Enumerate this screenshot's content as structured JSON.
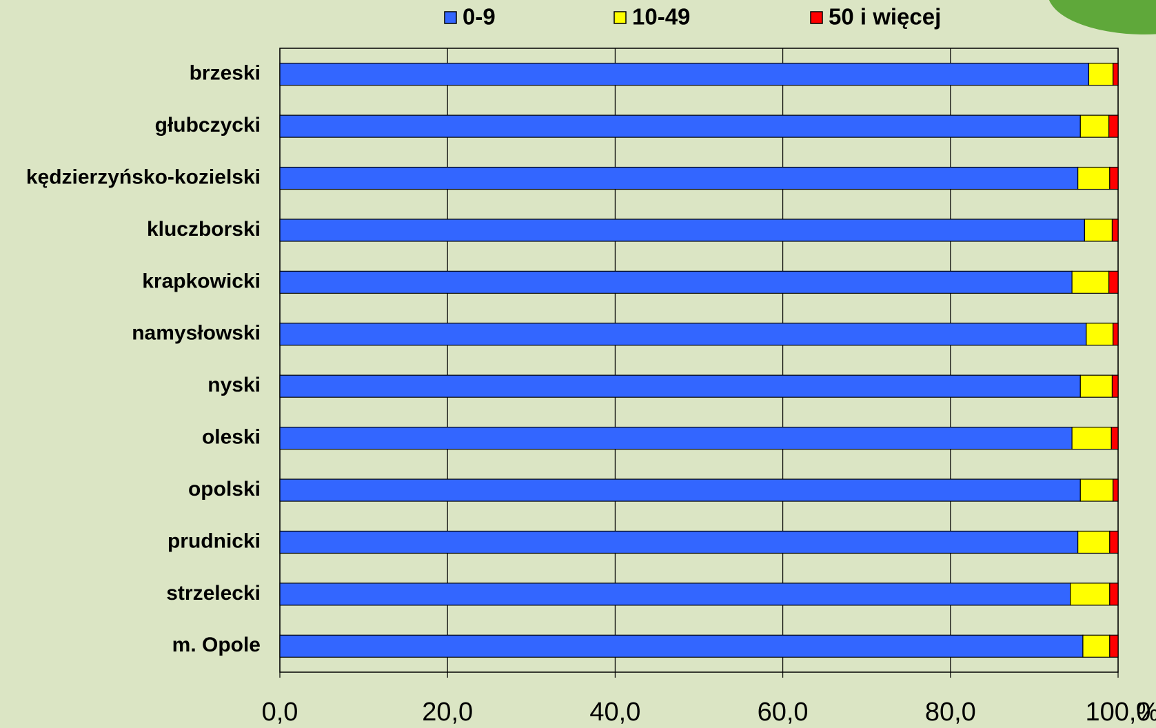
{
  "chart_data": {
    "type": "bar",
    "orientation": "horizontal",
    "stacked": true,
    "categories": [
      "brzeski",
      "głubczycki",
      "kędzierzyńsko-kozielski",
      "kluczborski",
      "krapkowicki",
      "namysłowski",
      "nyski",
      "oleski",
      "opolski",
      "prudnicki",
      "strzelecki",
      "m. Opole"
    ],
    "series": [
      {
        "name": "0-9",
        "color": "#3366ff",
        "values": [
          96.5,
          95.5,
          95.2,
          96.0,
          94.5,
          96.2,
          95.5,
          94.5,
          95.5,
          95.2,
          94.3,
          95.8
        ]
      },
      {
        "name": "10-49",
        "color": "#ffff00",
        "values": [
          2.9,
          3.4,
          3.8,
          3.3,
          4.4,
          3.2,
          3.8,
          4.7,
          3.9,
          3.8,
          4.7,
          3.2
        ]
      },
      {
        "name": "50 i więcej",
        "color": "#ff0000",
        "values": [
          0.6,
          1.1,
          1.0,
          0.7,
          1.1,
          0.6,
          0.7,
          0.8,
          0.6,
          1.0,
          1.0,
          1.0
        ]
      }
    ],
    "xlim": [
      0,
      100
    ],
    "xticks": [
      {
        "value": 0,
        "label": "0,0"
      },
      {
        "value": 20,
        "label": "20,0"
      },
      {
        "value": 40,
        "label": "40,0"
      },
      {
        "value": 60,
        "label": "60,0"
      },
      {
        "value": 80,
        "label": "80,0"
      },
      {
        "value": 100,
        "label": "100,0"
      }
    ],
    "x_label": "%",
    "grid": true,
    "legend": "top"
  }
}
